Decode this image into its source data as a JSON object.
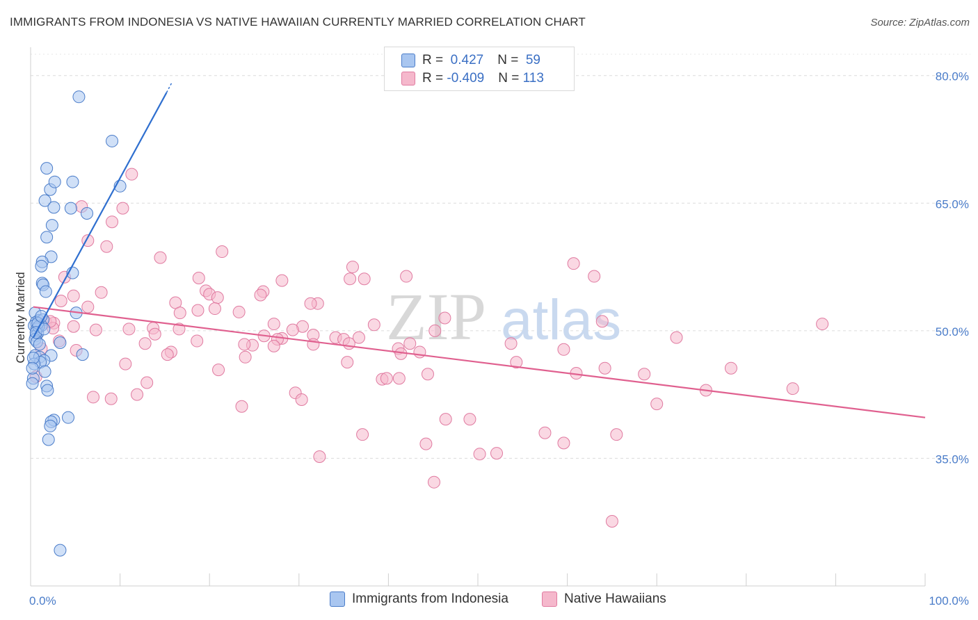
{
  "title": "IMMIGRANTS FROM INDONESIA VS NATIVE HAWAIIAN CURRENTLY MARRIED CORRELATION CHART",
  "source": "Source: ZipAtlas.com",
  "watermark": {
    "part1": "ZIP",
    "part2": "atlas"
  },
  "legend": {
    "rows": [
      {
        "r_label": "R = ",
        "r_value": " 0.427",
        "n_label": "N = ",
        "n_value": " 59",
        "color": "#a9c6f0",
        "stroke": "#4a7cc9"
      },
      {
        "r_label": "R = ",
        "r_value": "-0.409",
        "n_label": "N = ",
        "n_value": "113",
        "color": "#f5b8cc",
        "stroke": "#e07aa0"
      }
    ]
  },
  "chart_data": {
    "type": "scatter",
    "title": "IMMIGRANTS FROM INDONESIA VS NATIVE HAWAIIAN CURRENTLY MARRIED CORRELATION CHART",
    "xlabel": "",
    "ylabel": "Currently Married",
    "xlim": [
      0,
      100
    ],
    "ylim": [
      20,
      83
    ],
    "x_tick_labels": [
      "0.0%",
      "100.0%"
    ],
    "y_ticks": [
      35,
      50,
      65,
      80
    ],
    "y_tick_labels": [
      "35.0%",
      "50.0%",
      "65.0%",
      "80.0%"
    ],
    "grid": true,
    "series": [
      {
        "name": "Immigrants from Indonesia",
        "color": "#a9c6f0",
        "stroke": "#4a7cc9",
        "line_color": "#2f6fcf",
        "trend": {
          "x": [
            0.3,
            15.2
          ],
          "y": [
            49.2,
            78.0
          ],
          "dashed_to": {
            "x": 15.8,
            "y": 79.2
          }
        },
        "points": [
          [
            5.4,
            77.5
          ],
          [
            9.1,
            72.3
          ],
          [
            1.8,
            69.1
          ],
          [
            4.7,
            67.5
          ],
          [
            10.0,
            67.0
          ],
          [
            2.2,
            66.6
          ],
          [
            2.7,
            67.5
          ],
          [
            1.6,
            65.3
          ],
          [
            2.6,
            64.5
          ],
          [
            4.5,
            64.4
          ],
          [
            6.3,
            63.8
          ],
          [
            2.4,
            62.4
          ],
          [
            1.8,
            61.0
          ],
          [
            2.3,
            58.7
          ],
          [
            1.3,
            58.1
          ],
          [
            1.2,
            57.6
          ],
          [
            4.7,
            56.8
          ],
          [
            1.3,
            55.6
          ],
          [
            1.4,
            55.4
          ],
          [
            1.7,
            54.6
          ],
          [
            5.1,
            52.1
          ],
          [
            0.5,
            52.1
          ],
          [
            0.9,
            51.2
          ],
          [
            1.4,
            51.3
          ],
          [
            0.6,
            51.0
          ],
          [
            1.2,
            50.6
          ],
          [
            0.4,
            50.6
          ],
          [
            0.7,
            50.2
          ],
          [
            0.8,
            49.7
          ],
          [
            0.6,
            49.4
          ],
          [
            0.5,
            49.0
          ],
          [
            0.7,
            48.7
          ],
          [
            3.3,
            48.6
          ],
          [
            2.3,
            47.1
          ],
          [
            0.5,
            47.1
          ],
          [
            1.0,
            46.9
          ],
          [
            5.8,
            47.2
          ],
          [
            1.5,
            46.5
          ],
          [
            1.1,
            46.3
          ],
          [
            0.4,
            46.1
          ],
          [
            1.6,
            45.2
          ],
          [
            0.3,
            44.4
          ],
          [
            0.2,
            43.8
          ],
          [
            1.8,
            43.5
          ],
          [
            1.9,
            43.0
          ],
          [
            4.2,
            39.8
          ],
          [
            2.6,
            39.5
          ],
          [
            2.3,
            39.3
          ],
          [
            2.2,
            38.8
          ],
          [
            2.0,
            37.2
          ],
          [
            3.3,
            24.2
          ],
          [
            0.9,
            50.5
          ],
          [
            0.3,
            46.8
          ],
          [
            1.0,
            48.4
          ],
          [
            0.2,
            45.6
          ],
          [
            0.8,
            50.9
          ],
          [
            1.2,
            51.7
          ],
          [
            0.6,
            49.8
          ],
          [
            1.5,
            50.2
          ]
        ]
      },
      {
        "name": "Native Hawaiians",
        "color": "#f5b8cc",
        "stroke": "#e07aa0",
        "line_color": "#e0608f",
        "trend": {
          "x": [
            0.3,
            100.0
          ],
          "y": [
            52.8,
            39.8
          ]
        },
        "points": [
          [
            11.3,
            68.4
          ],
          [
            5.7,
            64.6
          ],
          [
            10.3,
            64.4
          ],
          [
            9.1,
            62.8
          ],
          [
            6.4,
            60.6
          ],
          [
            8.5,
            59.9
          ],
          [
            21.4,
            59.3
          ],
          [
            14.5,
            58.6
          ],
          [
            60.7,
            57.9
          ],
          [
            36.0,
            57.5
          ],
          [
            63.0,
            56.4
          ],
          [
            42.0,
            56.4
          ],
          [
            35.7,
            56.1
          ],
          [
            37.3,
            56.1
          ],
          [
            18.8,
            56.2
          ],
          [
            28.1,
            55.9
          ],
          [
            3.8,
            56.3
          ],
          [
            19.6,
            54.7
          ],
          [
            26.0,
            54.6
          ],
          [
            7.9,
            54.5
          ],
          [
            20.0,
            54.3
          ],
          [
            25.7,
            54.2
          ],
          [
            4.8,
            54.1
          ],
          [
            20.9,
            53.9
          ],
          [
            3.4,
            53.5
          ],
          [
            16.2,
            53.3
          ],
          [
            32.1,
            53.2
          ],
          [
            31.3,
            53.2
          ],
          [
            6.4,
            52.8
          ],
          [
            20.6,
            52.6
          ],
          [
            18.7,
            52.4
          ],
          [
            23.3,
            52.2
          ],
          [
            16.7,
            52.1
          ],
          [
            46.3,
            51.5
          ],
          [
            63.9,
            51.1
          ],
          [
            88.5,
            50.8
          ],
          [
            1.7,
            51.0
          ],
          [
            27.2,
            50.8
          ],
          [
            38.4,
            50.7
          ],
          [
            2.6,
            50.9
          ],
          [
            4.8,
            50.5
          ],
          [
            30.4,
            50.5
          ],
          [
            11.0,
            50.2
          ],
          [
            16.6,
            50.2
          ],
          [
            13.7,
            50.3
          ],
          [
            7.3,
            50.1
          ],
          [
            29.3,
            50.1
          ],
          [
            13.9,
            49.6
          ],
          [
            45.2,
            50.0
          ],
          [
            31.6,
            49.5
          ],
          [
            26.1,
            49.4
          ],
          [
            36.7,
            49.2
          ],
          [
            28.1,
            49.1
          ],
          [
            34.1,
            49.2
          ],
          [
            72.2,
            49.2
          ],
          [
            27.6,
            49.0
          ],
          [
            35.0,
            49.0
          ],
          [
            18.6,
            48.8
          ],
          [
            35.6,
            48.5
          ],
          [
            42.4,
            48.5
          ],
          [
            53.7,
            48.5
          ],
          [
            12.8,
            48.5
          ],
          [
            24.8,
            48.3
          ],
          [
            23.9,
            48.4
          ],
          [
            31.6,
            48.4
          ],
          [
            27.2,
            48.2
          ],
          [
            41.1,
            47.9
          ],
          [
            59.6,
            47.8
          ],
          [
            5.1,
            47.7
          ],
          [
            15.7,
            47.5
          ],
          [
            41.4,
            47.3
          ],
          [
            15.3,
            47.2
          ],
          [
            43.5,
            47.5
          ],
          [
            24.0,
            46.9
          ],
          [
            35.4,
            46.3
          ],
          [
            10.6,
            46.1
          ],
          [
            54.3,
            46.3
          ],
          [
            64.2,
            45.6
          ],
          [
            78.3,
            45.6
          ],
          [
            21.0,
            45.4
          ],
          [
            61.0,
            45.0
          ],
          [
            44.4,
            44.9
          ],
          [
            68.6,
            44.9
          ],
          [
            41.2,
            44.4
          ],
          [
            39.3,
            44.3
          ],
          [
            39.8,
            44.4
          ],
          [
            13.0,
            43.9
          ],
          [
            29.6,
            42.7
          ],
          [
            85.2,
            43.2
          ],
          [
            75.5,
            43.0
          ],
          [
            7.0,
            42.2
          ],
          [
            9.0,
            42.0
          ],
          [
            11.9,
            42.5
          ],
          [
            30.3,
            41.9
          ],
          [
            70.0,
            41.4
          ],
          [
            23.6,
            41.1
          ],
          [
            46.4,
            39.6
          ],
          [
            49.1,
            39.6
          ],
          [
            37.1,
            37.8
          ],
          [
            57.5,
            38.0
          ],
          [
            65.5,
            37.8
          ],
          [
            44.2,
            36.7
          ],
          [
            59.6,
            36.8
          ],
          [
            50.2,
            35.5
          ],
          [
            52.1,
            35.6
          ],
          [
            32.3,
            35.2
          ],
          [
            45.1,
            32.2
          ],
          [
            65.0,
            27.6
          ],
          [
            3.2,
            48.8
          ],
          [
            2.5,
            50.3
          ],
          [
            1.2,
            47.9
          ],
          [
            2.2,
            51.1
          ],
          [
            0.6,
            44.6
          ]
        ]
      }
    ]
  },
  "bottom_legend": [
    {
      "label": "Immigrants from Indonesia",
      "color": "#a9c6f0",
      "stroke": "#4a7cc9"
    },
    {
      "label": "Native Hawaiians",
      "color": "#f5b8cc",
      "stroke": "#e07aa0"
    }
  ]
}
